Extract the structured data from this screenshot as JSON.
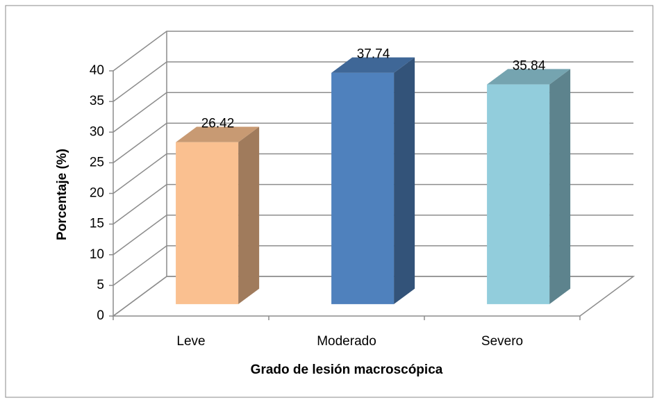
{
  "chart_data": {
    "type": "bar3d",
    "categories": [
      "Leve",
      "Moderado",
      "Severo"
    ],
    "values": [
      26.42,
      37.74,
      35.84
    ],
    "colors": [
      "#FAC090",
      "#4F81BD",
      "#92CDDC"
    ],
    "ylim": [
      0,
      40
    ],
    "yticks": [
      0,
      5,
      10,
      15,
      20,
      25,
      30,
      35,
      40
    ],
    "ylabel": "Porcentaje (%)",
    "xlabel": "Grado de lesión macroscópica",
    "grid": true
  }
}
